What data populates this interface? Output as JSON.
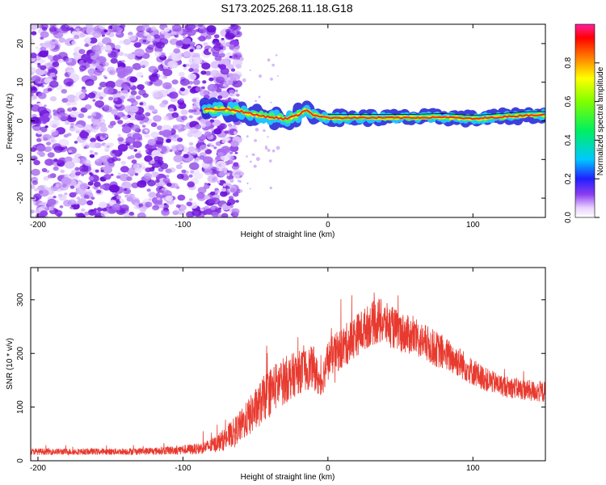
{
  "title": "S173.2025.268.11.18.G18",
  "chart_data": [
    {
      "type": "heatmap",
      "title": "S173.2025.268.11.18.G18",
      "xlabel": "Height of straight line (km)",
      "ylabel": "Frequency (Hz)",
      "xlim": [
        -205,
        150
      ],
      "ylim": [
        -25,
        25
      ],
      "xticks": [
        -200,
        -100,
        0,
        100
      ],
      "xtick_labels": [
        "-200",
        "-100",
        "0",
        "100"
      ],
      "yticks": [
        -20,
        -10,
        0,
        10,
        20
      ],
      "ytick_labels": [
        "-20",
        "-10",
        "0",
        "10",
        "20"
      ],
      "noise_region": {
        "x_from": -205,
        "x_to": -78,
        "typical_amplitude": 0.15
      },
      "ridge_line": {
        "x": [
          -85,
          -78,
          -70,
          -60,
          -50,
          -40,
          -30,
          -20,
          -15,
          -10,
          0,
          20,
          40,
          60,
          80,
          100,
          120,
          140,
          150
        ],
        "freq": [
          3,
          3,
          3,
          2.5,
          1.5,
          1,
          0.5,
          1.5,
          3,
          1.5,
          0.8,
          0.8,
          0.8,
          0.8,
          1,
          0.5,
          1,
          1.5,
          1.5
        ]
      },
      "colorbar": {
        "label": "Normalized spectral amplitude",
        "range": [
          0,
          1
        ],
        "ticks": [
          0.0,
          0.2,
          0.4,
          0.6,
          0.8
        ],
        "tick_labels": [
          "0.0",
          "0.2",
          "0.4",
          "0.6",
          "0.8"
        ]
      }
    },
    {
      "type": "line",
      "xlabel": "Height of straight line (km)",
      "ylabel": "SNR (10 * v/v)",
      "xlim": [
        -205,
        150
      ],
      "ylim": [
        0,
        360
      ],
      "xticks": [
        -200,
        -100,
        0,
        100
      ],
      "xtick_labels": [
        "-200",
        "-100",
        "0",
        "100"
      ],
      "yticks": [
        0,
        100,
        200,
        300
      ],
      "ytick_labels": [
        "0",
        "100",
        "200",
        "300"
      ],
      "color": "#e83a2f",
      "series": [
        {
          "name": "SNR",
          "x": [
            -205,
            -180,
            -150,
            -120,
            -90,
            -80,
            -70,
            -60,
            -50,
            -40,
            -30,
            -20,
            -10,
            -5,
            0,
            10,
            20,
            30,
            35,
            40,
            50,
            60,
            70,
            80,
            90,
            100,
            110,
            120,
            130,
            140,
            150
          ],
          "mean": [
            17,
            17,
            17,
            18,
            22,
            28,
            42,
            65,
            95,
            130,
            150,
            165,
            175,
            140,
            190,
            210,
            235,
            255,
            260,
            255,
            240,
            230,
            215,
            200,
            185,
            165,
            150,
            140,
            135,
            130,
            128
          ],
          "spread": [
            6,
            6,
            6,
            7,
            10,
            14,
            22,
            30,
            40,
            45,
            45,
            40,
            40,
            30,
            35,
            40,
            40,
            40,
            45,
            40,
            38,
            35,
            35,
            32,
            30,
            25,
            22,
            20,
            20,
            20,
            20
          ]
        }
      ]
    }
  ]
}
